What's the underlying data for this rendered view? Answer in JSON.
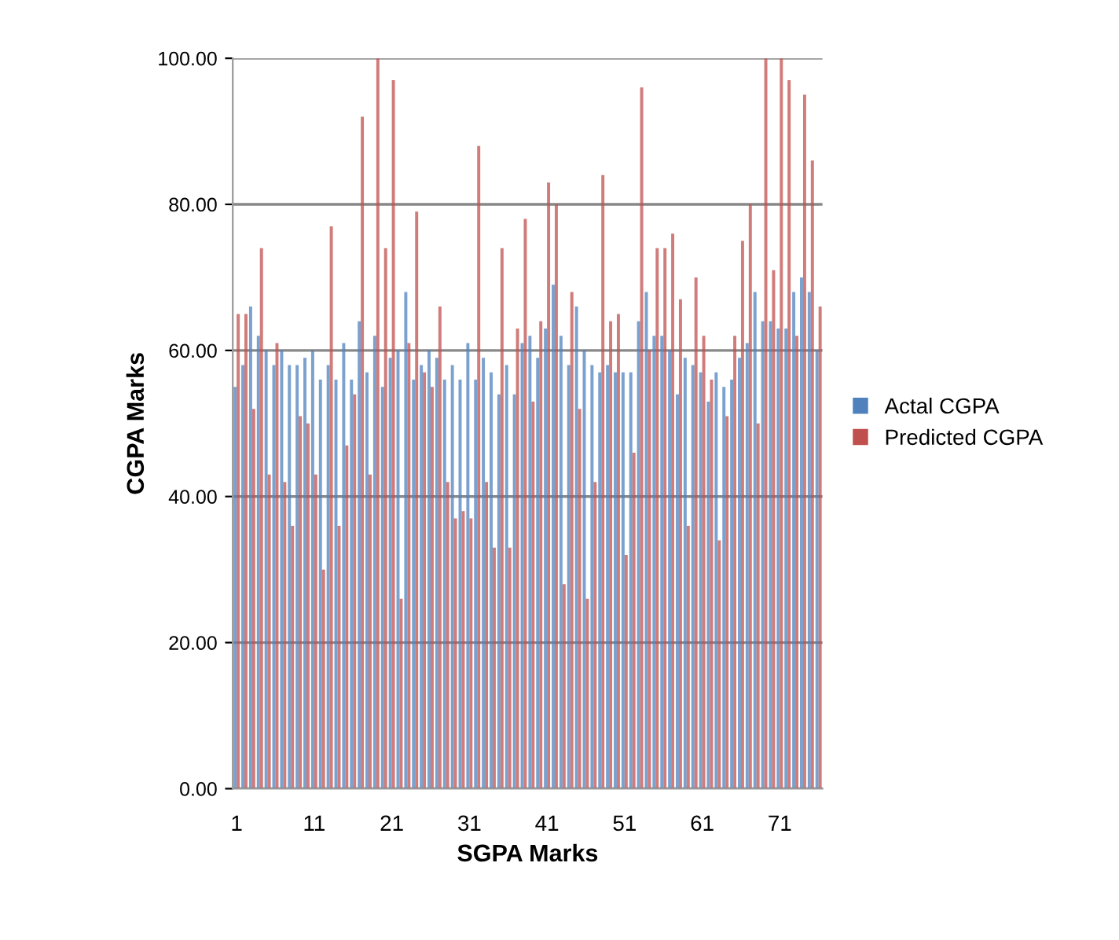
{
  "chart_data": {
    "type": "bar",
    "xlabel": "SGPA Marks",
    "ylabel": "CGPA Marks",
    "categories": [
      "1",
      null,
      null,
      null,
      null,
      null,
      null,
      null,
      null,
      null,
      "11",
      null,
      null,
      null,
      null,
      null,
      null,
      null,
      null,
      null,
      "21",
      null,
      null,
      null,
      null,
      null,
      null,
      null,
      null,
      null,
      "31",
      null,
      null,
      null,
      null,
      null,
      null,
      null,
      null,
      null,
      "41",
      null,
      null,
      null,
      null,
      null,
      null,
      null,
      null,
      null,
      "51",
      null,
      null,
      null,
      null,
      null,
      null,
      null,
      null,
      null,
      "61",
      null,
      null,
      null,
      null,
      null,
      null,
      null,
      null,
      null,
      "71",
      null,
      null,
      null,
      null,
      null
    ],
    "series": [
      {
        "name": "Actal CGPA",
        "color": "#4f81bd",
        "values": [
          55,
          58,
          66,
          62,
          60,
          58,
          60,
          58,
          58,
          59,
          60,
          56,
          58,
          56,
          61,
          56,
          64,
          57,
          62,
          55,
          59,
          60,
          68,
          56,
          58,
          60,
          59,
          56,
          58,
          56,
          61,
          56,
          59,
          57,
          54,
          58,
          54,
          61,
          62,
          59,
          63,
          69,
          62,
          58,
          66,
          60,
          58,
          57,
          58,
          57,
          57,
          57,
          64,
          68,
          62,
          62,
          60,
          54,
          59,
          58,
          57,
          53,
          57,
          55,
          56,
          59,
          61,
          68,
          64,
          64,
          63,
          63,
          68,
          70,
          68,
          60
        ]
      },
      {
        "name": "Predicted CGPA",
        "color": "#c0504d",
        "values": [
          65,
          65,
          52,
          74,
          43,
          61,
          42,
          36,
          51,
          50,
          43,
          30,
          77,
          36,
          47,
          54,
          92,
          43,
          100,
          74,
          97,
          26,
          61,
          79,
          57,
          55,
          66,
          42,
          37,
          38,
          37,
          88,
          42,
          33,
          74,
          33,
          63,
          78,
          53,
          64,
          83,
          80,
          28,
          68,
          52,
          26,
          42,
          84,
          64,
          65,
          32,
          46,
          96,
          60,
          74,
          74,
          76,
          67,
          36,
          70,
          62,
          56,
          34,
          51,
          62,
          75,
          80,
          50,
          100,
          71,
          100,
          97,
          62,
          95,
          86,
          66
        ]
      }
    ],
    "ylim": [
      0,
      100
    ],
    "yticks": [
      {
        "value": 0,
        "label": "0.00"
      },
      {
        "value": 20,
        "label": "20.00"
      },
      {
        "value": 40,
        "label": "40.00"
      },
      {
        "value": 60,
        "label": "60.00"
      },
      {
        "value": 80,
        "label": "80.00"
      },
      {
        "value": 100,
        "label": "100.00"
      }
    ],
    "grid": "y",
    "legend": "right"
  }
}
